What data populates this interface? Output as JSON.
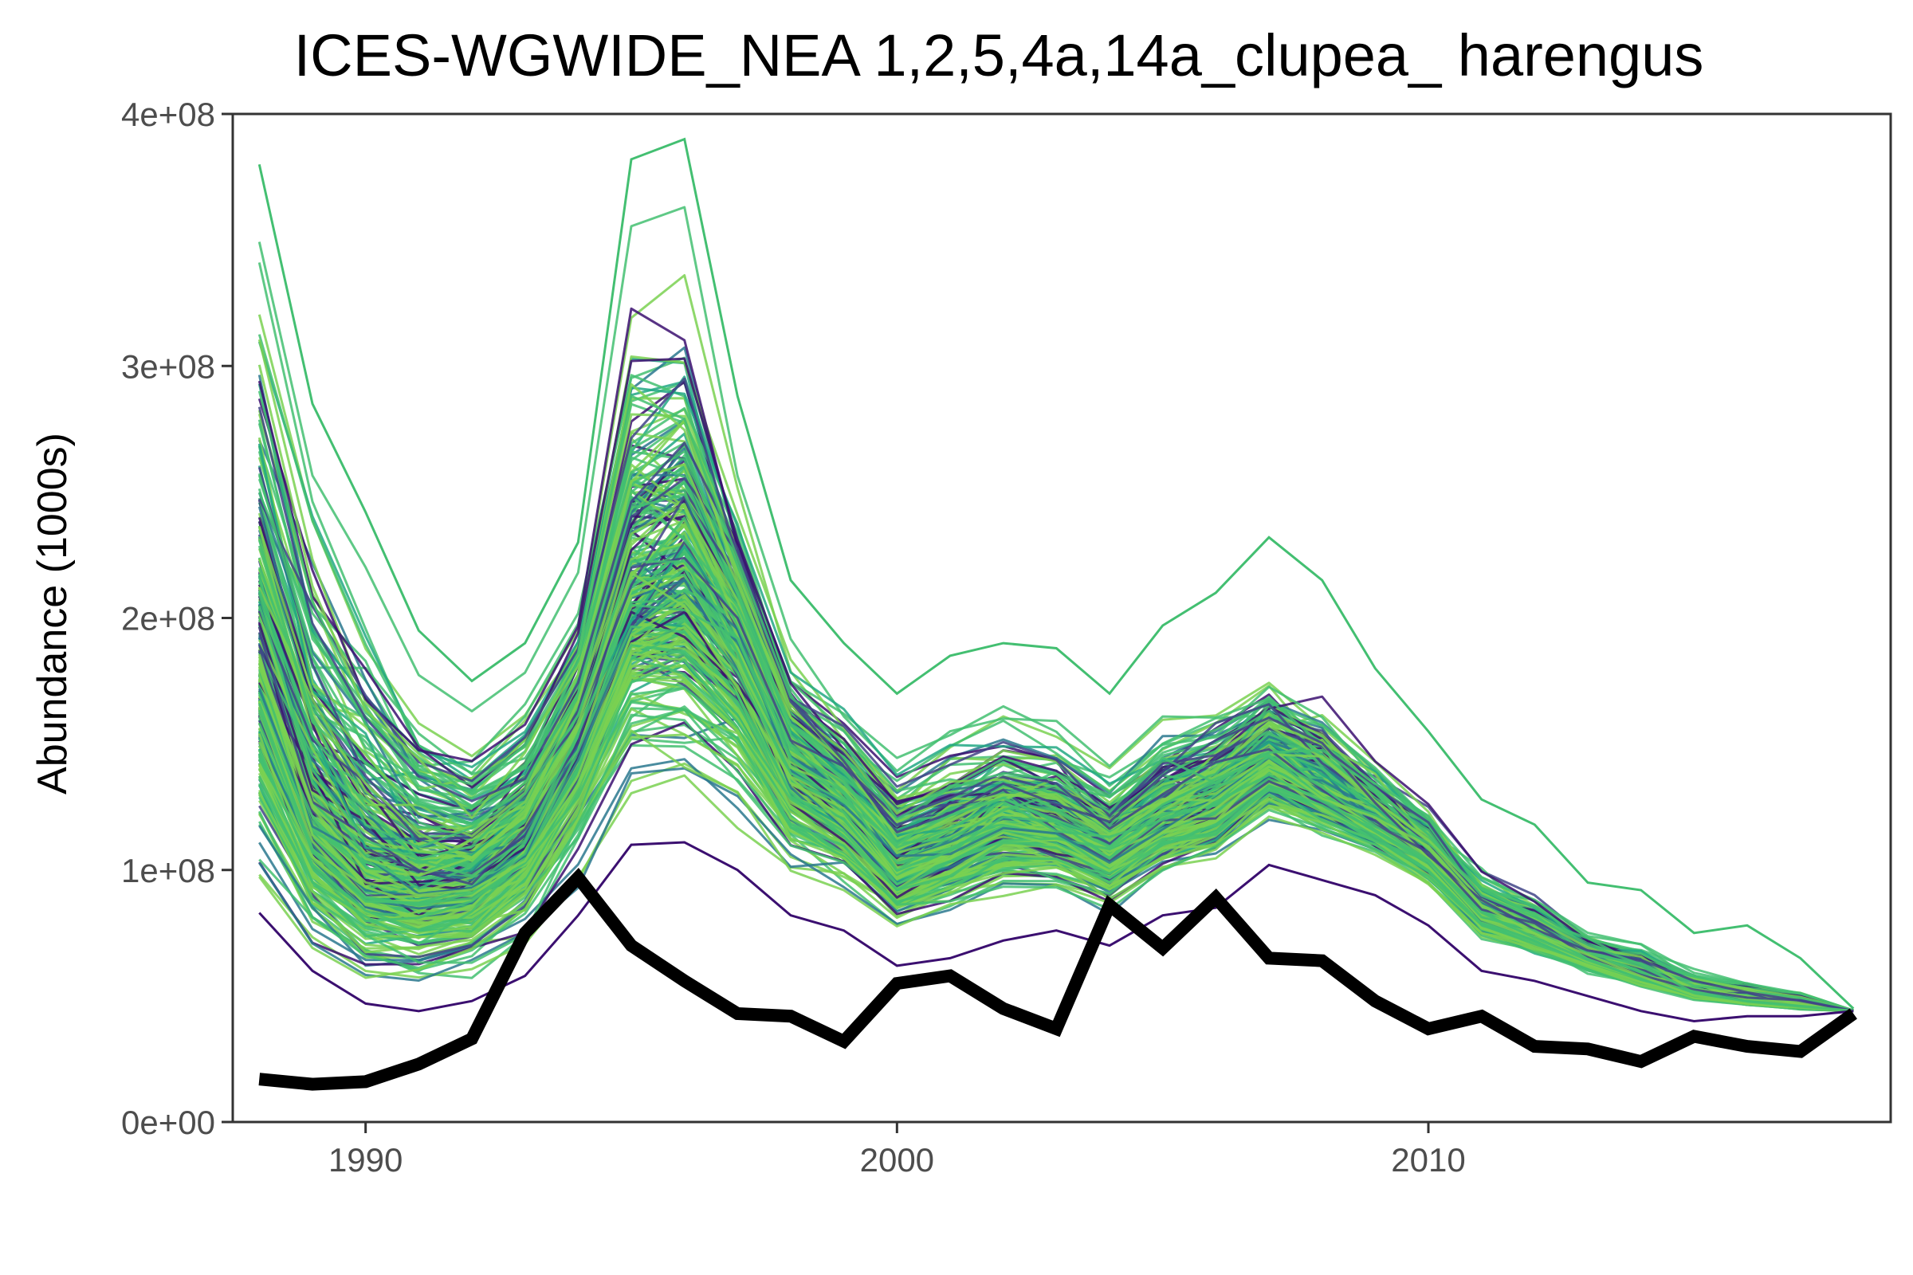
{
  "chart_data": {
    "type": "line",
    "title": "ICES-WGWIDE_NEA 1,2,5,4a,14a_clupea_ harengus",
    "xlabel": "",
    "ylabel": "Abundance (1000s)",
    "xlim": [
      1987.5,
      2018.7
    ],
    "ylim": [
      0,
      400000000
    ],
    "x_ticks": [
      {
        "value": 1990,
        "label": "1990"
      },
      {
        "value": 2000,
        "label": "2000"
      },
      {
        "value": 2010,
        "label": "2010"
      }
    ],
    "y_ticks": [
      {
        "value": 0,
        "label": "0e+00"
      },
      {
        "value": 100000000,
        "label": "1e+08"
      },
      {
        "value": 200000000,
        "label": "2e+08"
      },
      {
        "value": 300000000,
        "label": "3e+08"
      },
      {
        "value": 400000000,
        "label": "4e+08"
      }
    ],
    "grid": false,
    "legend": "none",
    "x": [
      1988,
      1989,
      1990,
      1991,
      1992,
      1993,
      1994,
      1995,
      1996,
      1997,
      1998,
      1999,
      2000,
      2001,
      2002,
      2003,
      2004,
      2005,
      2006,
      2007,
      2008,
      2009,
      2010,
      2011,
      2012,
      2013,
      2014,
      2015,
      2016,
      2017,
      2018
    ],
    "simulated_series": {
      "count": 300,
      "colormap": [
        "#3b0f70",
        "#414487",
        "#2a788e",
        "#22a884",
        "#43bf71",
        "#7ad151"
      ],
      "median": [
        175000000.0,
        118000000.0,
        96000000.0,
        92000000.0,
        95000000.0,
        112000000.0,
        150000000.0,
        205000000.0,
        210000000.0,
        185000000.0,
        140000000.0,
        125000000.0,
        100000000.0,
        108000000.0,
        118000000.0,
        115000000.0,
        105000000.0,
        118000000.0,
        125000000.0,
        140000000.0,
        130000000.0,
        118000000.0,
        105000000.0,
        82000000.0,
        74000000.0,
        65000000.0,
        58000000.0,
        52000000.0,
        48000000.0,
        46000000.0,
        44000000.0
      ],
      "upper": [
        380000000.0,
        285000000.0,
        242000000.0,
        195000000.0,
        175000000.0,
        190000000.0,
        230000000.0,
        382000000.0,
        390000000.0,
        288000000.0,
        215000000.0,
        190000000.0,
        170000000.0,
        185000000.0,
        190000000.0,
        188000000.0,
        170000000.0,
        197000000.0,
        210000000.0,
        232000000.0,
        215000000.0,
        180000000.0,
        155000000.0,
        128000000.0,
        118000000.0,
        95000000.0,
        92000000.0,
        75000000.0,
        78000000.0,
        65000000.0,
        45000000.0
      ],
      "lower": [
        83000000.0,
        60000000.0,
        47000000.0,
        44000000.0,
        48000000.0,
        58000000.0,
        82000000.0,
        110000000.0,
        111000000.0,
        100000000.0,
        82000000.0,
        76000000.0,
        62000000.0,
        65000000.0,
        72000000.0,
        76000000.0,
        70000000.0,
        82000000.0,
        85000000.0,
        102000000.0,
        96000000.0,
        90000000.0,
        78000000.0,
        60000000.0,
        56000000.0,
        50000000.0,
        44000000.0,
        40000000.0,
        42000000.0,
        42000000.0,
        44000000.0
      ]
    },
    "observed": {
      "color": "#000000",
      "values": [
        17000000.0,
        15000000.0,
        16000000.0,
        23000000.0,
        33000000.0,
        75000000.0,
        97000000.0,
        70000000.0,
        56000000.0,
        43000000.0,
        42000000.0,
        32000000.0,
        55000000.0,
        58000000.0,
        45000000.0,
        37000000.0,
        86000000.0,
        69000000.0,
        89000000.0,
        65000000.0,
        64000000.0,
        48000000.0,
        37000000.0,
        42000000.0,
        30000000.0,
        29000000.0,
        24000000.0,
        34000000.0,
        30000000.0,
        28000000.0,
        43000000.0
      ]
    }
  }
}
